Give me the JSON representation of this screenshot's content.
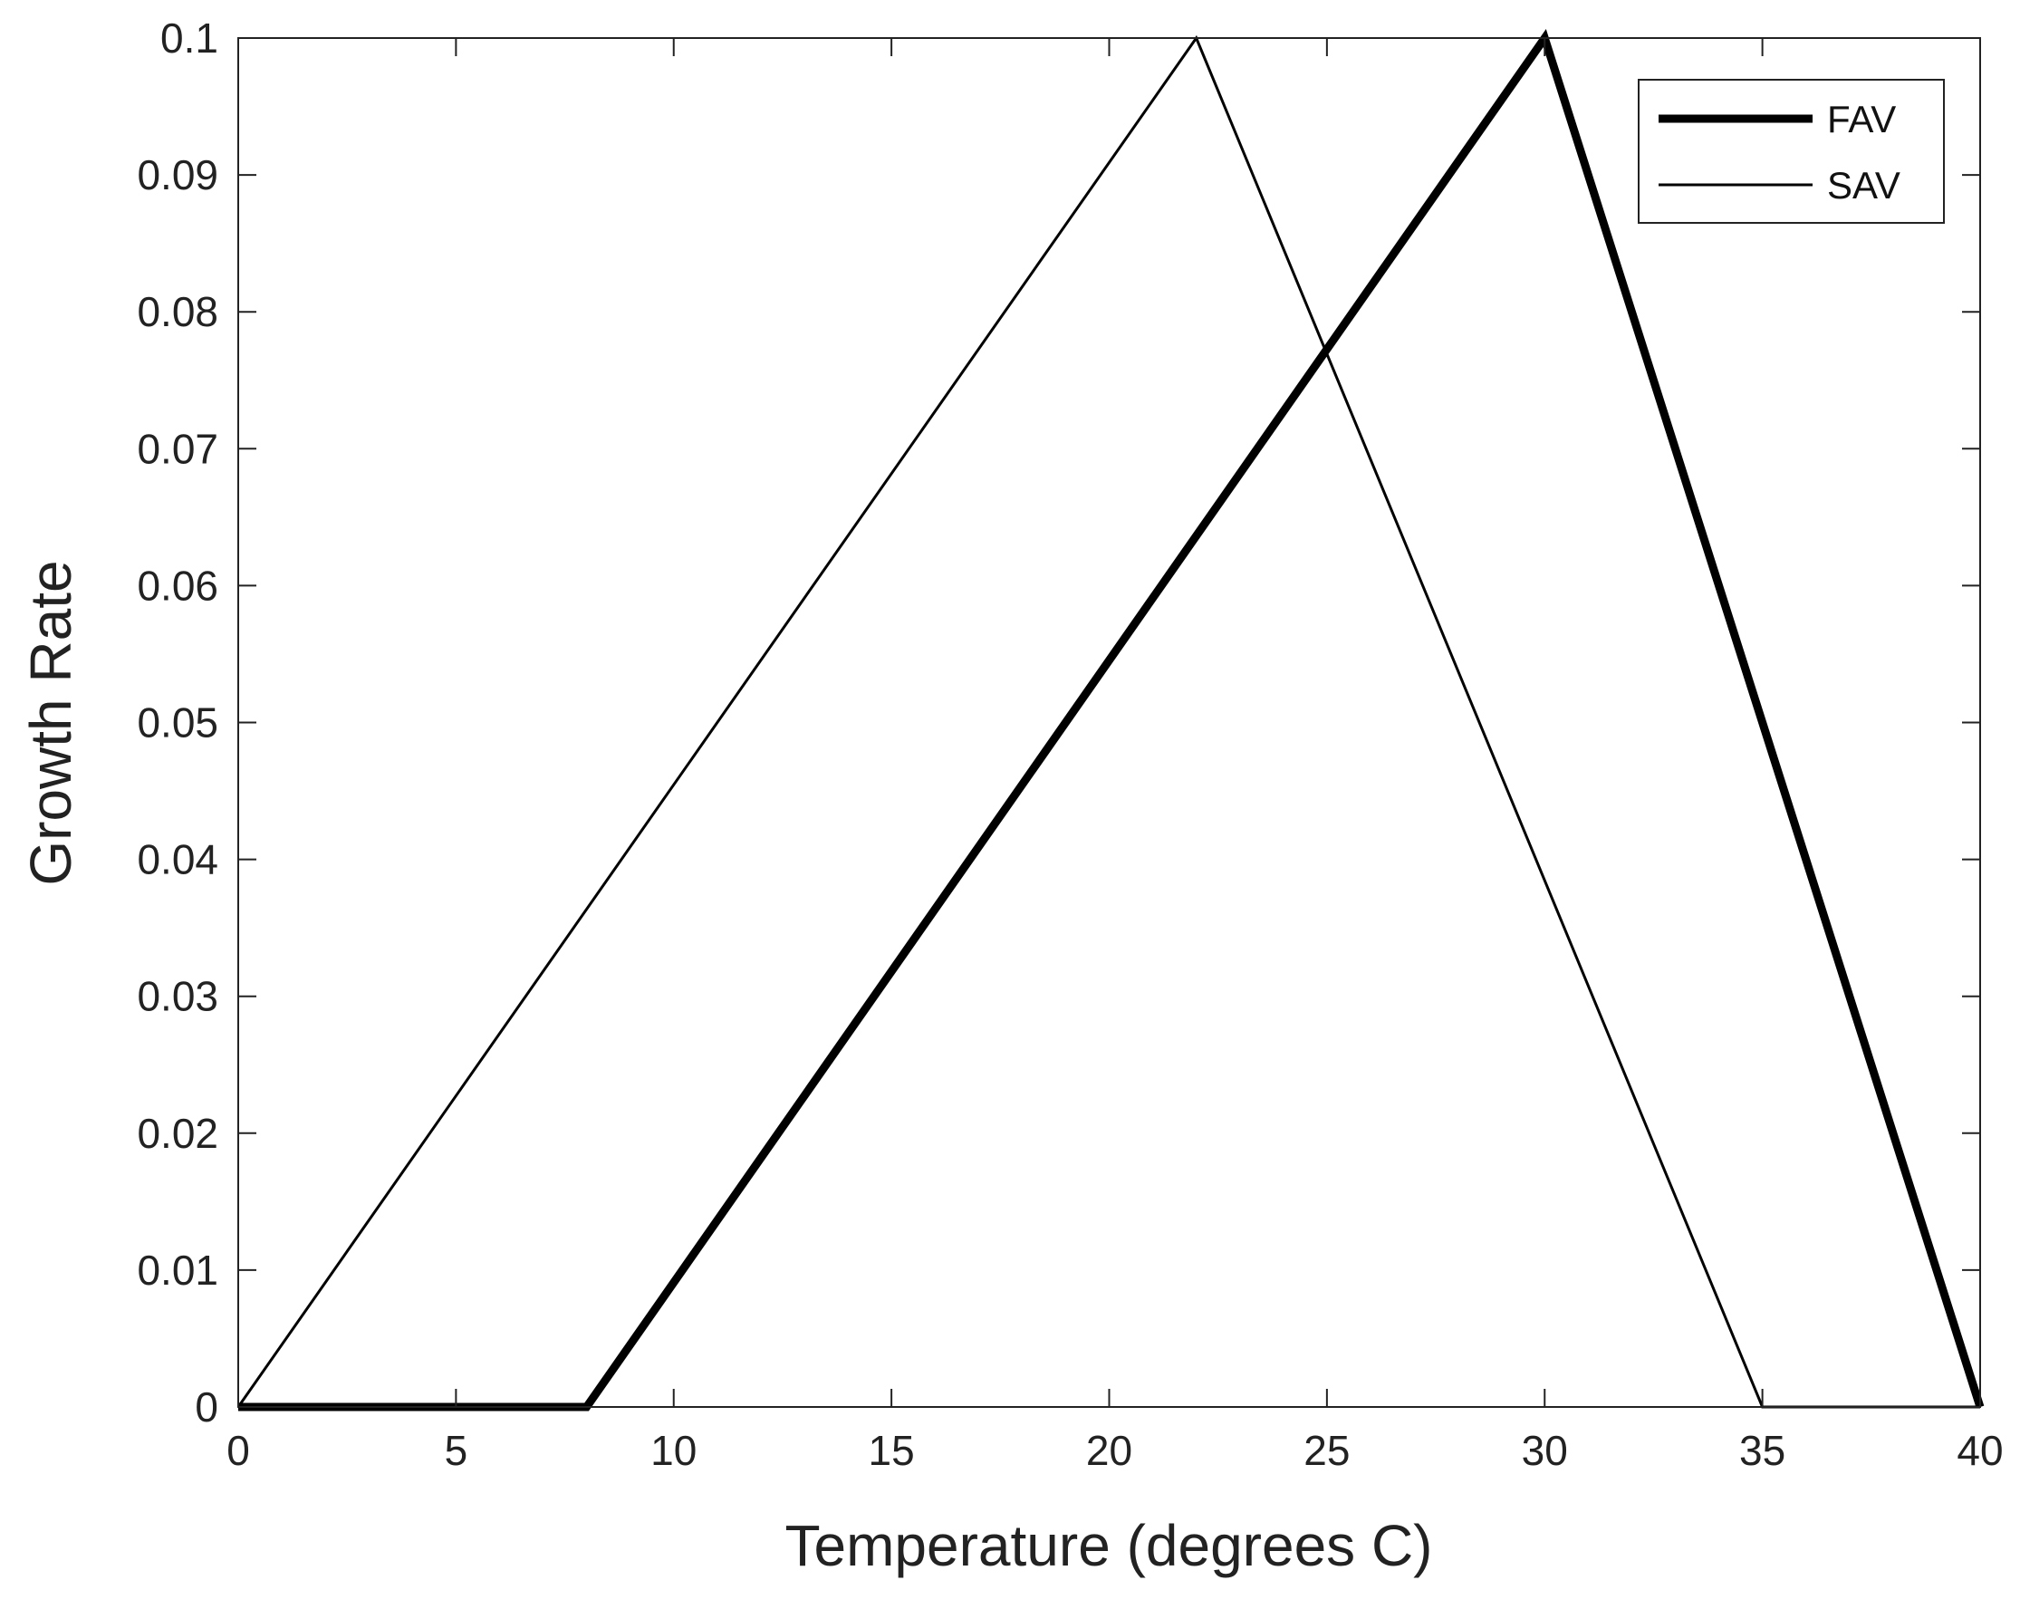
{
  "chart_data": {
    "type": "line",
    "title": "",
    "xlabel": "Temperature (degrees C)",
    "ylabel": "Growth Rate",
    "xlim": [
      0,
      40
    ],
    "ylim": [
      0,
      0.1
    ],
    "xticks": [
      0,
      5,
      10,
      15,
      20,
      25,
      30,
      35,
      40
    ],
    "xtick_labels": [
      "0",
      "5",
      "10",
      "15",
      "20",
      "25",
      "30",
      "35",
      "40"
    ],
    "yticks": [
      0,
      0.01,
      0.02,
      0.03,
      0.04,
      0.05,
      0.06,
      0.07,
      0.08,
      0.09,
      0.1
    ],
    "ytick_labels": [
      "0",
      "0.01",
      "0.02",
      "0.03",
      "0.04",
      "0.05",
      "0.06",
      "0.07",
      "0.08",
      "0.09",
      "0.1"
    ],
    "grid": false,
    "legend_position": "top-right",
    "series": [
      {
        "name": "FAV",
        "color": "#000000",
        "line": "thick",
        "x": [
          0,
          8,
          30,
          40
        ],
        "y": [
          0,
          0,
          0.1,
          0
        ]
      },
      {
        "name": "SAV",
        "color": "#000000",
        "line": "thin",
        "x": [
          0,
          22,
          35,
          40
        ],
        "y": [
          0,
          0.1,
          0,
          0
        ]
      }
    ]
  }
}
